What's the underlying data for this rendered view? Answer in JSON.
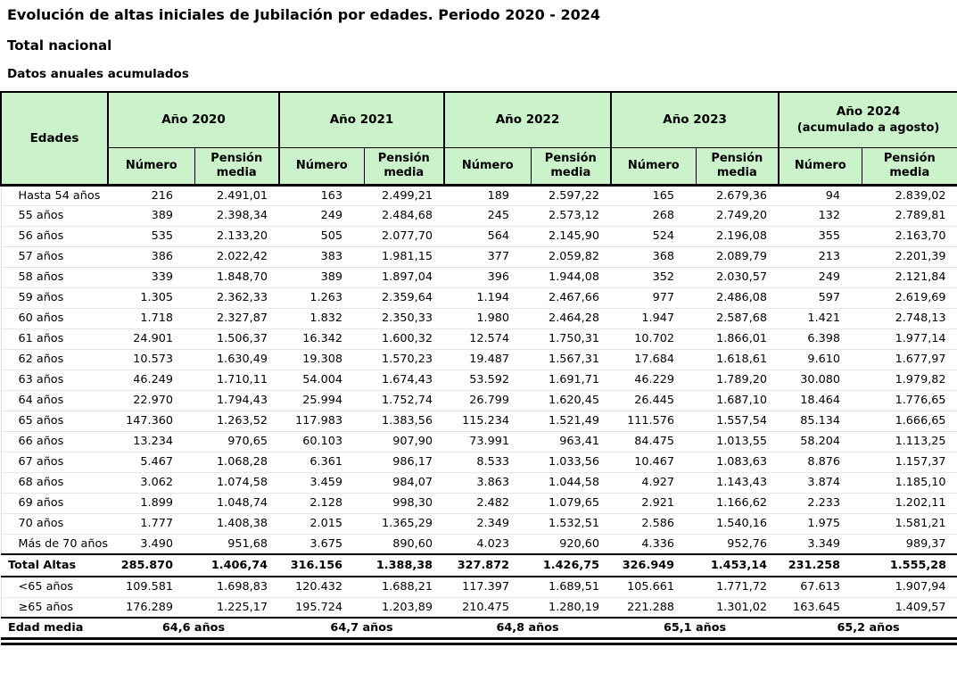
{
  "page": {
    "title": "Evolución de altas iniciales de Jubilación por edades. Periodo 2020 - 2024",
    "subtitle": "Total nacional",
    "caption": "Datos anuales acumulados"
  },
  "colors": {
    "header_bg": "#ccf2cc",
    "border": "#000000"
  },
  "table": {
    "header": {
      "edades_label": "Edades",
      "numero_label": "Número",
      "pension_label": "Pensión media",
      "years": [
        {
          "label": "Año 2020",
          "sublabel": ""
        },
        {
          "label": "Año 2021",
          "sublabel": ""
        },
        {
          "label": "Año 2022",
          "sublabel": ""
        },
        {
          "label": "Año 2023",
          "sublabel": ""
        },
        {
          "label": "Año 2024",
          "sublabel": "(acumulado a agosto)"
        }
      ]
    },
    "rows": [
      {
        "edad": "Hasta 54 años",
        "values": [
          "216",
          "2.491,01",
          "163",
          "2.499,21",
          "189",
          "2.597,22",
          "165",
          "2.679,36",
          "94",
          "2.839,02"
        ]
      },
      {
        "edad": "55 años",
        "values": [
          "389",
          "2.398,34",
          "249",
          "2.484,68",
          "245",
          "2.573,12",
          "268",
          "2.749,20",
          "132",
          "2.789,81"
        ]
      },
      {
        "edad": "56 años",
        "values": [
          "535",
          "2.133,20",
          "505",
          "2.077,70",
          "564",
          "2.145,90",
          "524",
          "2.196,08",
          "355",
          "2.163,70"
        ]
      },
      {
        "edad": "57 años",
        "values": [
          "386",
          "2.022,42",
          "383",
          "1.981,15",
          "377",
          "2.059,82",
          "368",
          "2.089,79",
          "213",
          "2.201,39"
        ]
      },
      {
        "edad": "58 años",
        "values": [
          "339",
          "1.848,70",
          "389",
          "1.897,04",
          "396",
          "1.944,08",
          "352",
          "2.030,57",
          "249",
          "2.121,84"
        ]
      },
      {
        "edad": "59 años",
        "values": [
          "1.305",
          "2.362,33",
          "1.263",
          "2.359,64",
          "1.194",
          "2.467,66",
          "977",
          "2.486,08",
          "597",
          "2.619,69"
        ]
      },
      {
        "edad": "60 años",
        "values": [
          "1.718",
          "2.327,87",
          "1.832",
          "2.350,33",
          "1.980",
          "2.464,28",
          "1.947",
          "2.587,68",
          "1.421",
          "2.748,13"
        ]
      },
      {
        "edad": "61 años",
        "values": [
          "24.901",
          "1.506,37",
          "16.342",
          "1.600,32",
          "12.574",
          "1.750,31",
          "10.702",
          "1.866,01",
          "6.398",
          "1.977,14"
        ]
      },
      {
        "edad": "62 años",
        "values": [
          "10.573",
          "1.630,49",
          "19.308",
          "1.570,23",
          "19.487",
          "1.567,31",
          "17.684",
          "1.618,61",
          "9.610",
          "1.677,97"
        ]
      },
      {
        "edad": "63 años",
        "values": [
          "46.249",
          "1.710,11",
          "54.004",
          "1.674,43",
          "53.592",
          "1.691,71",
          "46.229",
          "1.789,20",
          "30.080",
          "1.979,82"
        ]
      },
      {
        "edad": "64 años",
        "values": [
          "22.970",
          "1.794,43",
          "25.994",
          "1.752,74",
          "26.799",
          "1.620,45",
          "26.445",
          "1.687,10",
          "18.464",
          "1.776,65"
        ]
      },
      {
        "edad": "65 años",
        "values": [
          "147.360",
          "1.263,52",
          "117.983",
          "1.383,56",
          "115.234",
          "1.521,49",
          "111.576",
          "1.557,54",
          "85.134",
          "1.666,65"
        ]
      },
      {
        "edad": "66 años",
        "values": [
          "13.234",
          "970,65",
          "60.103",
          "907,90",
          "73.991",
          "963,41",
          "84.475",
          "1.013,55",
          "58.204",
          "1.113,25"
        ]
      },
      {
        "edad": "67 años",
        "values": [
          "5.467",
          "1.068,28",
          "6.361",
          "986,17",
          "8.533",
          "1.033,56",
          "10.467",
          "1.083,63",
          "8.876",
          "1.157,37"
        ]
      },
      {
        "edad": "68 años",
        "values": [
          "3.062",
          "1.074,58",
          "3.459",
          "984,07",
          "3.863",
          "1.044,58",
          "4.927",
          "1.143,43",
          "3.874",
          "1.185,10"
        ]
      },
      {
        "edad": "69 años",
        "values": [
          "1.899",
          "1.048,74",
          "2.128",
          "998,30",
          "2.482",
          "1.079,65",
          "2.921",
          "1.166,62",
          "2.233",
          "1.202,11"
        ]
      },
      {
        "edad": "70 años",
        "values": [
          "1.777",
          "1.408,38",
          "2.015",
          "1.365,29",
          "2.349",
          "1.532,51",
          "2.586",
          "1.540,16",
          "1.975",
          "1.581,21"
        ]
      },
      {
        "edad": "Más de 70 años",
        "values": [
          "3.490",
          "951,68",
          "3.675",
          "890,60",
          "4.023",
          "920,60",
          "4.336",
          "952,76",
          "3.349",
          "989,37"
        ]
      }
    ],
    "total_row": {
      "label": "Total Altas",
      "values": [
        "285.870",
        "1.406,74",
        "316.156",
        "1.388,38",
        "327.872",
        "1.426,75",
        "326.949",
        "1.453,14",
        "231.258",
        "1.555,28"
      ]
    },
    "breakdown_rows": [
      {
        "label": "<65 años",
        "values": [
          "109.581",
          "1.698,83",
          "120.432",
          "1.688,21",
          "117.397",
          "1.689,51",
          "105.661",
          "1.771,72",
          "67.613",
          "1.907,94"
        ]
      },
      {
        "label": "≥65 años",
        "values": [
          "176.289",
          "1.225,17",
          "195.724",
          "1.203,89",
          "210.475",
          "1.280,19",
          "221.288",
          "1.301,02",
          "163.645",
          "1.409,57"
        ]
      }
    ],
    "edad_media_row": {
      "label": "Edad media",
      "values": [
        "64,6 años",
        "64,7 años",
        "64,8 años",
        "65,1 años",
        "65,2 años"
      ]
    }
  }
}
